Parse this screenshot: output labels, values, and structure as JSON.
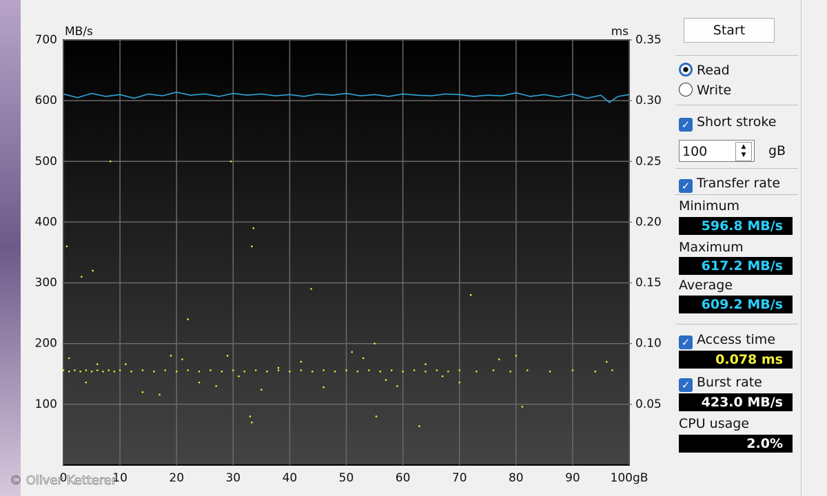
{
  "chart_data": {
    "type": "line",
    "y_label": "MB/s",
    "y2_label": "ms",
    "xlim": [
      0,
      100
    ],
    "xticks": [
      0,
      10,
      20,
      30,
      40,
      50,
      60,
      70,
      80,
      90,
      {
        "value": 100,
        "label": "100gB"
      }
    ],
    "ylim": [
      0,
      700
    ],
    "yticks": [
      100,
      200,
      300,
      400,
      500,
      600,
      700
    ],
    "y2lim": [
      0,
      0.35
    ],
    "y2ticks": [
      0.05,
      {
        "value": 0.1,
        "label": "0.10"
      },
      0.15,
      {
        "value": 0.2,
        "label": "0.20"
      },
      0.25,
      {
        "value": 0.3,
        "label": "0.30"
      },
      0.35
    ],
    "grid": true,
    "series": [
      {
        "name": "Transfer rate",
        "type": "line",
        "color": "#2fa6dc",
        "x": [
          0,
          2.5,
          5,
          7.5,
          10,
          12.5,
          15,
          17.5,
          20,
          22.5,
          25,
          27.5,
          30,
          32.5,
          35,
          37.5,
          40,
          42.5,
          45,
          47.5,
          50,
          52.5,
          55,
          57.5,
          60,
          62.5,
          65,
          67.5,
          70,
          72.5,
          75,
          77.5,
          80,
          82.5,
          85,
          87.5,
          90,
          92.5,
          95,
          96.5,
          98,
          100
        ],
        "values": [
          611,
          605,
          612,
          607,
          610,
          604,
          611,
          608,
          614,
          609,
          611,
          607,
          612,
          609,
          611,
          608,
          610,
          607,
          611,
          609,
          612,
          608,
          610,
          607,
          611,
          609,
          608,
          611,
          610,
          607,
          609,
          608,
          613,
          607,
          610,
          606,
          611,
          604,
          609,
          597,
          607,
          610
        ]
      },
      {
        "name": "Access time",
        "type": "scatter",
        "color": "#f2f23a",
        "axis": "y2",
        "x": [
          0,
          1,
          2,
          3,
          4,
          5,
          6,
          7,
          8,
          9,
          10,
          12,
          14,
          16,
          18,
          20,
          22,
          24,
          26,
          28,
          30,
          32,
          34,
          36,
          38,
          40,
          42,
          44,
          46,
          48,
          50,
          52,
          54,
          56,
          58,
          60,
          62,
          64,
          66,
          68,
          70,
          73,
          76,
          79,
          82,
          86,
          90,
          94,
          97,
          1,
          4,
          6,
          11,
          14,
          17,
          19,
          21,
          24,
          27,
          29,
          31,
          35,
          38,
          42,
          46,
          51,
          53,
          55,
          57,
          59,
          64,
          67,
          70,
          77,
          80,
          96,
          0.6,
          3.2,
          5.2,
          8.3,
          29.6,
          33.6,
          33.3,
          43.8,
          72,
          22,
          33,
          33.3,
          55.3,
          62.9,
          81.1
        ],
        "values": [
          0.078,
          0.077,
          0.078,
          0.077,
          0.078,
          0.077,
          0.078,
          0.077,
          0.078,
          0.077,
          0.078,
          0.077,
          0.078,
          0.077,
          0.078,
          0.077,
          0.078,
          0.077,
          0.078,
          0.077,
          0.078,
          0.077,
          0.078,
          0.077,
          0.078,
          0.077,
          0.078,
          0.077,
          0.078,
          0.077,
          0.078,
          0.077,
          0.078,
          0.077,
          0.078,
          0.077,
          0.078,
          0.077,
          0.078,
          0.077,
          0.078,
          0.077,
          0.078,
          0.077,
          0.078,
          0.077,
          0.078,
          0.077,
          0.078,
          0.088,
          0.068,
          0.083,
          0.083,
          0.06,
          0.058,
          0.09,
          0.087,
          0.068,
          0.065,
          0.09,
          0.073,
          0.062,
          0.08,
          0.085,
          0.064,
          0.093,
          0.088,
          0.1,
          0.07,
          0.065,
          0.083,
          0.073,
          0.068,
          0.087,
          0.09,
          0.085,
          0.18,
          0.155,
          0.16,
          0.25,
          0.25,
          0.195,
          0.18,
          0.145,
          0.14,
          0.12,
          0.04,
          0.035,
          0.04,
          0.032,
          0.048
        ]
      }
    ]
  },
  "panel": {
    "start": "Start",
    "read": "Read",
    "write": "Write",
    "short_stroke": "Short stroke",
    "stroke_size": "100",
    "stroke_unit": "gB",
    "minimum_label": "Minimum",
    "minimum": "596.8 MB/s",
    "maximum_label": "Maximum",
    "maximum": "617.2 MB/s",
    "average_label": "Average",
    "average": "609.2 MB/s",
    "access_time": "0.078 ms",
    "burst_label": "Burst rate",
    "burst": "423.0 MB/s",
    "cpu_label": "CPU usage",
    "cpu": "2.0%"
  },
  "watermark": "© Oliver Ketterer"
}
